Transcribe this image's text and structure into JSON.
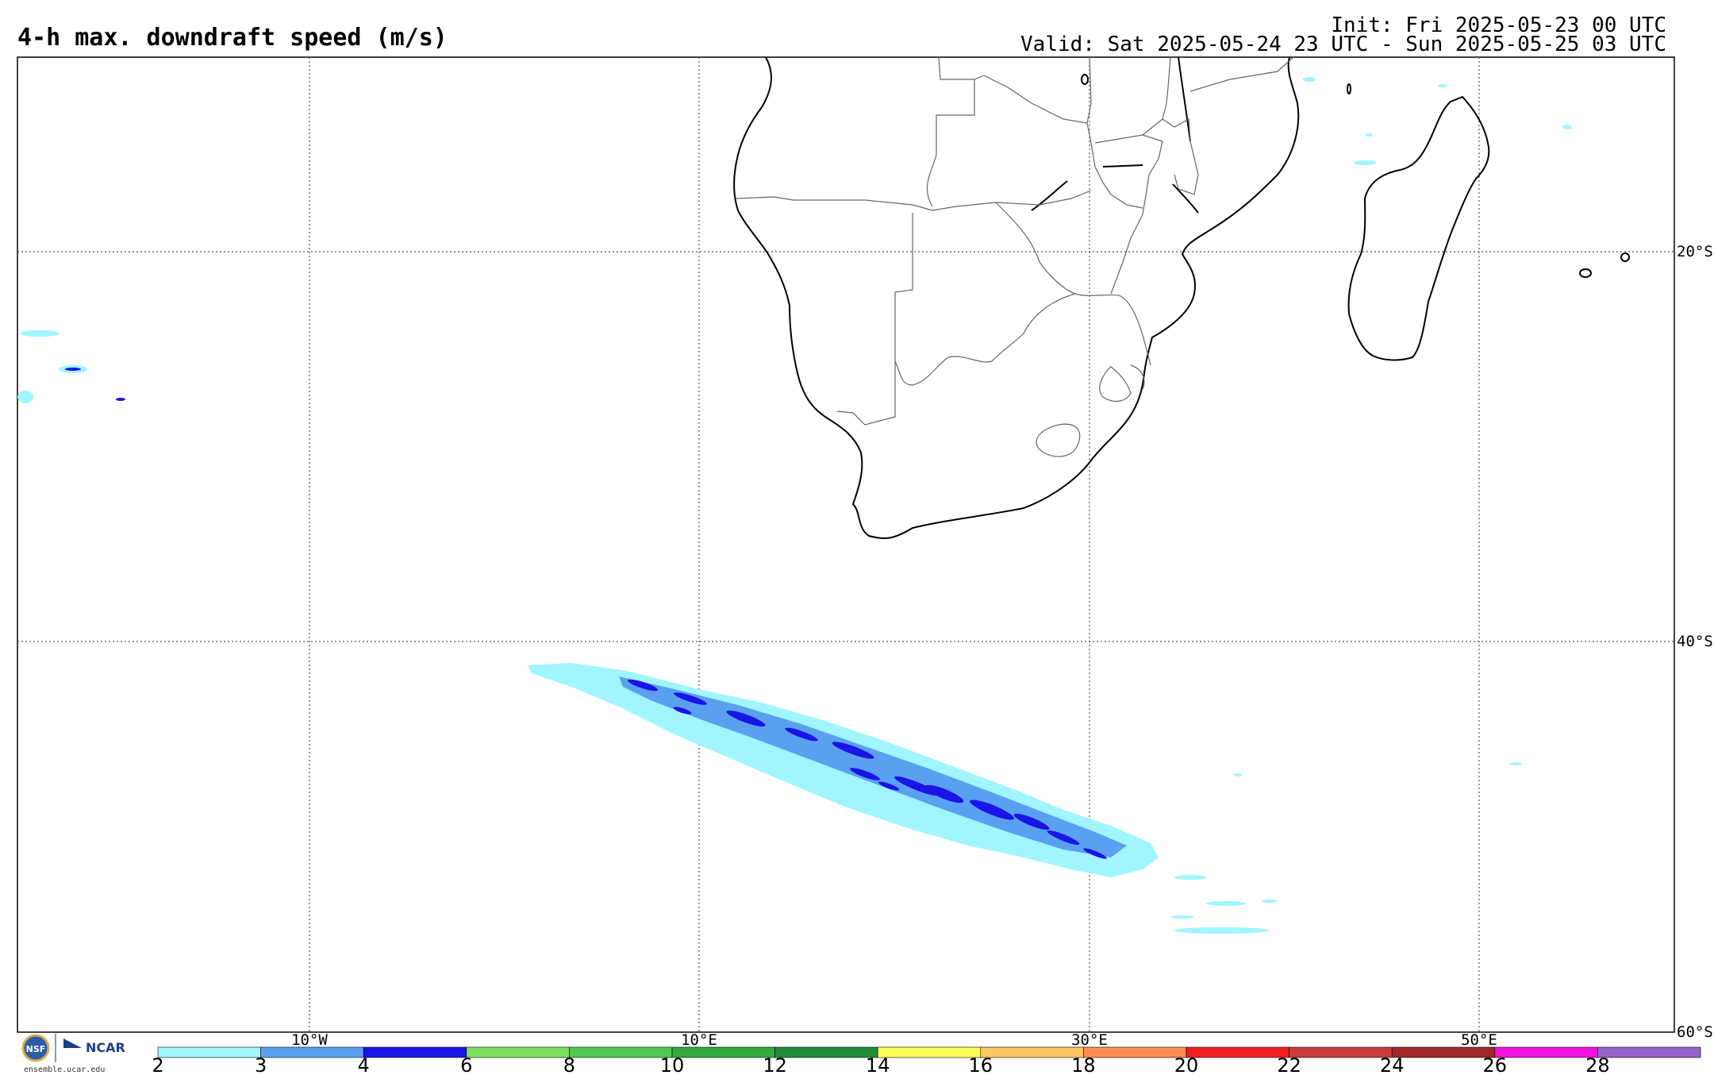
{
  "header": {
    "title": "4-h max. downdraft speed (m/s)",
    "init": "Init: Fri 2025-05-23 00 UTC",
    "valid": "Valid: Sat 2025-05-24 23 UTC - Sun 2025-05-25 03 UTC"
  },
  "map": {
    "lat_labels": [
      "20°S",
      "40°S",
      "60°S"
    ],
    "lon_labels": [
      "10°W",
      "10°E",
      "30°E",
      "50°E"
    ],
    "land_outline_color": "#000000",
    "grid_color": "#555555"
  },
  "legend": {
    "ticks": [
      "2",
      "3",
      "4",
      "6",
      "8",
      "10",
      "12",
      "14",
      "16",
      "18",
      "20",
      "22",
      "24",
      "26",
      "28"
    ],
    "colors": [
      "#a0f5ff",
      "#5aa0f0",
      "#1a14e6",
      "#80e060",
      "#50c850",
      "#32aa3c",
      "#228c3c",
      "#ffff5a",
      "#ffc864",
      "#ff8c50",
      "#f02020",
      "#c83c3c",
      "#a02828",
      "#f014dc",
      "#9664c8"
    ]
  },
  "footer": {
    "site": "ensemble.ucar.edu",
    "org": "NCAR",
    "nsf": "NSF"
  }
}
